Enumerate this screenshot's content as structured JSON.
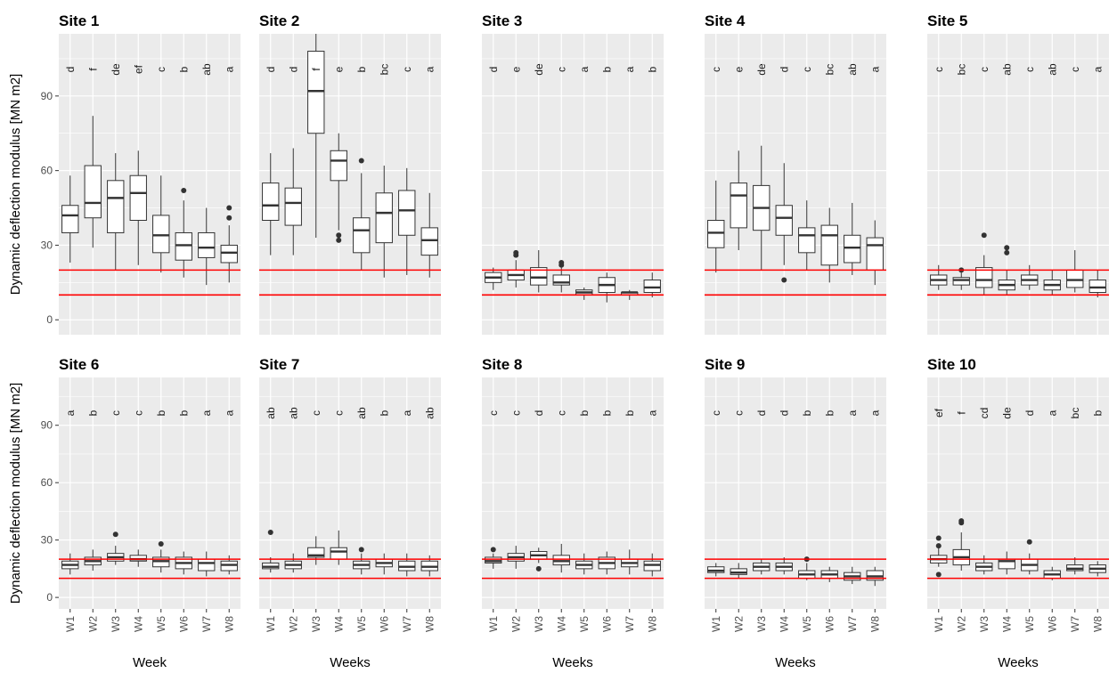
{
  "chart_data": {
    "type": "box",
    "ylabel": "Dynamic deflection modulus [MN m2]",
    "yticks": [
      0,
      30,
      60,
      90
    ],
    "ylim": [
      -6,
      115
    ],
    "categories": [
      "W1",
      "W2",
      "W3",
      "W4",
      "W5",
      "W6",
      "W7",
      "W8"
    ],
    "reference_lines": [
      10,
      20
    ],
    "colors": {
      "panel_bg": "#ebebeb",
      "grid": "#ffffff",
      "box_line": "#333333",
      "reference_line": "#ff0000",
      "outlier": "#333333"
    },
    "panels": [
      {
        "title": "Site 1",
        "xlabel": "Week",
        "letters": [
          "d",
          "f",
          "de",
          "ef",
          "c",
          "b",
          "ab",
          "a"
        ],
        "boxes": [
          {
            "min": 23,
            "q1": 35,
            "median": 42,
            "q3": 46,
            "max": 58,
            "outliers": []
          },
          {
            "min": 29,
            "q1": 41,
            "median": 47,
            "q3": 62,
            "max": 82,
            "outliers": []
          },
          {
            "min": 20,
            "q1": 35,
            "median": 49,
            "q3": 56,
            "max": 67,
            "outliers": []
          },
          {
            "min": 22,
            "q1": 40,
            "median": 51,
            "q3": 58,
            "max": 68,
            "outliers": []
          },
          {
            "min": 19,
            "q1": 27,
            "median": 34,
            "q3": 42,
            "max": 58,
            "outliers": []
          },
          {
            "min": 17,
            "q1": 24,
            "median": 30,
            "q3": 35,
            "max": 48,
            "outliers": [
              52
            ]
          },
          {
            "min": 14,
            "q1": 25,
            "median": 29,
            "q3": 35,
            "max": 45,
            "outliers": []
          },
          {
            "min": 15,
            "q1": 23,
            "median": 27,
            "q3": 30,
            "max": 38,
            "outliers": [
              41,
              45
            ]
          }
        ]
      },
      {
        "title": "Site 2",
        "xlabel": "Weeks",
        "letters": [
          "d",
          "d",
          "f",
          "e",
          "b",
          "bc",
          "c",
          "a"
        ],
        "boxes": [
          {
            "min": 26,
            "q1": 40,
            "median": 46,
            "q3": 55,
            "max": 67,
            "outliers": []
          },
          {
            "min": 26,
            "q1": 38,
            "median": 47,
            "q3": 53,
            "max": 69,
            "outliers": []
          },
          {
            "min": 33,
            "q1": 75,
            "median": 92,
            "q3": 108,
            "max": 115,
            "outliers": []
          },
          {
            "min": 36,
            "q1": 56,
            "median": 64,
            "q3": 68,
            "max": 75,
            "outliers": [
              32,
              34
            ]
          },
          {
            "min": 20,
            "q1": 27,
            "median": 36,
            "q3": 41,
            "max": 59,
            "outliers": [
              64
            ]
          },
          {
            "min": 17,
            "q1": 31,
            "median": 43,
            "q3": 51,
            "max": 62,
            "outliers": []
          },
          {
            "min": 18,
            "q1": 34,
            "median": 44,
            "q3": 52,
            "max": 61,
            "outliers": []
          },
          {
            "min": 17,
            "q1": 26,
            "median": 32,
            "q3": 37,
            "max": 51,
            "outliers": []
          }
        ]
      },
      {
        "title": "Site 3",
        "xlabel": "Weeks",
        "letters": [
          "d",
          "e",
          "de",
          "c",
          "a",
          "b",
          "a",
          "b"
        ],
        "boxes": [
          {
            "min": 12,
            "q1": 15,
            "median": 17,
            "q3": 19,
            "max": 21,
            "outliers": []
          },
          {
            "min": 13,
            "q1": 16,
            "median": 18,
            "q3": 20,
            "max": 24,
            "outliers": [
              26,
              27
            ]
          },
          {
            "min": 11,
            "q1": 14,
            "median": 17,
            "q3": 21,
            "max": 28,
            "outliers": []
          },
          {
            "min": 11,
            "q1": 14,
            "median": 15,
            "q3": 18,
            "max": 21,
            "outliers": [
              22,
              23
            ]
          },
          {
            "min": 8,
            "q1": 10,
            "median": 11,
            "q3": 12,
            "max": 13,
            "outliers": []
          },
          {
            "min": 7,
            "q1": 11,
            "median": 14,
            "q3": 17,
            "max": 19,
            "outliers": []
          },
          {
            "min": 8,
            "q1": 10,
            "median": 11,
            "q3": 11,
            "max": 12,
            "outliers": []
          },
          {
            "min": 9,
            "q1": 11,
            "median": 13,
            "q3": 16,
            "max": 19,
            "outliers": []
          }
        ]
      },
      {
        "title": "Site 4",
        "xlabel": "Weeks",
        "letters": [
          "c",
          "e",
          "de",
          "d",
          "c",
          "bc",
          "ab",
          "a"
        ],
        "boxes": [
          {
            "min": 19,
            "q1": 29,
            "median": 35,
            "q3": 40,
            "max": 56,
            "outliers": []
          },
          {
            "min": 28,
            "q1": 37,
            "median": 50,
            "q3": 55,
            "max": 68,
            "outliers": []
          },
          {
            "min": 20,
            "q1": 36,
            "median": 45,
            "q3": 54,
            "max": 70,
            "outliers": []
          },
          {
            "min": 22,
            "q1": 34,
            "median": 41,
            "q3": 46,
            "max": 63,
            "outliers": [
              16
            ]
          },
          {
            "min": 20,
            "q1": 27,
            "median": 34,
            "q3": 37,
            "max": 48,
            "outliers": []
          },
          {
            "min": 15,
            "q1": 22,
            "median": 34,
            "q3": 38,
            "max": 45,
            "outliers": []
          },
          {
            "min": 18,
            "q1": 23,
            "median": 29,
            "q3": 34,
            "max": 47,
            "outliers": []
          },
          {
            "min": 14,
            "q1": 20,
            "median": 30,
            "q3": 33,
            "max": 40,
            "outliers": []
          }
        ]
      },
      {
        "title": "Site 5",
        "xlabel": "Weeks",
        "letters": [
          "c",
          "bc",
          "c",
          "ab",
          "c",
          "ab",
          "c",
          "a"
        ],
        "boxes": [
          {
            "min": 12,
            "q1": 14,
            "median": 16,
            "q3": 18,
            "max": 22,
            "outliers": []
          },
          {
            "min": 12,
            "q1": 14,
            "median": 16,
            "q3": 17,
            "max": 19,
            "outliers": [
              20
            ]
          },
          {
            "min": 10,
            "q1": 13,
            "median": 16,
            "q3": 21,
            "max": 26,
            "outliers": [
              34
            ]
          },
          {
            "min": 10,
            "q1": 12,
            "median": 14,
            "q3": 16,
            "max": 20,
            "outliers": [
              27,
              29
            ]
          },
          {
            "min": 12,
            "q1": 14,
            "median": 16,
            "q3": 18,
            "max": 22,
            "outliers": []
          },
          {
            "min": 10,
            "q1": 12,
            "median": 14,
            "q3": 16,
            "max": 20,
            "outliers": []
          },
          {
            "min": 11,
            "q1": 13,
            "median": 16,
            "q3": 20,
            "max": 28,
            "outliers": []
          },
          {
            "min": 9,
            "q1": 11,
            "median": 13,
            "q3": 16,
            "max": 20,
            "outliers": []
          }
        ]
      },
      {
        "title": "Site 6",
        "xlabel": "Week",
        "letters": [
          "a",
          "b",
          "c",
          "c",
          "b",
          "b",
          "a",
          "a"
        ],
        "boxes": [
          {
            "min": 12,
            "q1": 15,
            "median": 17,
            "q3": 19,
            "max": 23,
            "outliers": []
          },
          {
            "min": 14,
            "q1": 17,
            "median": 19,
            "q3": 21,
            "max": 25,
            "outliers": []
          },
          {
            "min": 17,
            "q1": 19,
            "median": 21,
            "q3": 23,
            "max": 27,
            "outliers": [
              33
            ]
          },
          {
            "min": 16,
            "q1": 19,
            "median": 20,
            "q3": 22,
            "max": 25,
            "outliers": []
          },
          {
            "min": 13,
            "q1": 16,
            "median": 19,
            "q3": 21,
            "max": 25,
            "outliers": [
              28
            ]
          },
          {
            "min": 12,
            "q1": 15,
            "median": 18,
            "q3": 21,
            "max": 24,
            "outliers": []
          },
          {
            "min": 11,
            "q1": 14,
            "median": 18,
            "q3": 20,
            "max": 24,
            "outliers": []
          },
          {
            "min": 12,
            "q1": 14,
            "median": 17,
            "q3": 19,
            "max": 22,
            "outliers": []
          }
        ]
      },
      {
        "title": "Site 7",
        "xlabel": "Weeks",
        "letters": [
          "ab",
          "ab",
          "c",
          "c",
          "ab",
          "b",
          "a",
          "ab"
        ],
        "boxes": [
          {
            "min": 13,
            "q1": 15,
            "median": 16,
            "q3": 18,
            "max": 21,
            "outliers": [
              34
            ]
          },
          {
            "min": 13,
            "q1": 15,
            "median": 17,
            "q3": 19,
            "max": 23,
            "outliers": []
          },
          {
            "min": 17,
            "q1": 21,
            "median": 22,
            "q3": 26,
            "max": 32,
            "outliers": []
          },
          {
            "min": 17,
            "q1": 20,
            "median": 24,
            "q3": 26,
            "max": 35,
            "outliers": []
          },
          {
            "min": 12,
            "q1": 15,
            "median": 17,
            "q3": 19,
            "max": 23,
            "outliers": [
              25
            ]
          },
          {
            "min": 12,
            "q1": 16,
            "median": 18,
            "q3": 20,
            "max": 23,
            "outliers": []
          },
          {
            "min": 11,
            "q1": 14,
            "median": 16,
            "q3": 19,
            "max": 23,
            "outliers": []
          },
          {
            "min": 11,
            "q1": 14,
            "median": 16,
            "q3": 19,
            "max": 22,
            "outliers": []
          }
        ]
      },
      {
        "title": "Site 8",
        "xlabel": "Weeks",
        "letters": [
          "c",
          "c",
          "d",
          "c",
          "b",
          "b",
          "b",
          "a"
        ],
        "boxes": [
          {
            "min": 15,
            "q1": 18,
            "median": 19,
            "q3": 21,
            "max": 23,
            "outliers": [
              25
            ]
          },
          {
            "min": 15,
            "q1": 19,
            "median": 21,
            "q3": 23,
            "max": 27,
            "outliers": []
          },
          {
            "min": 18,
            "q1": 20,
            "median": 22,
            "q3": 24,
            "max": 26,
            "outliers": [
              15
            ]
          },
          {
            "min": 13,
            "q1": 17,
            "median": 19,
            "q3": 22,
            "max": 28,
            "outliers": []
          },
          {
            "min": 12,
            "q1": 15,
            "median": 17,
            "q3": 19,
            "max": 23,
            "outliers": []
          },
          {
            "min": 12,
            "q1": 15,
            "median": 18,
            "q3": 21,
            "max": 24,
            "outliers": []
          },
          {
            "min": 12,
            "q1": 16,
            "median": 18,
            "q3": 20,
            "max": 25,
            "outliers": []
          },
          {
            "min": 11,
            "q1": 14,
            "median": 17,
            "q3": 19,
            "max": 23,
            "outliers": []
          }
        ]
      },
      {
        "title": "Site 9",
        "xlabel": "Weeks",
        "letters": [
          "c",
          "c",
          "d",
          "d",
          "b",
          "b",
          "a",
          "a"
        ],
        "boxes": [
          {
            "min": 11,
            "q1": 13,
            "median": 14,
            "q3": 16,
            "max": 18,
            "outliers": []
          },
          {
            "min": 10,
            "q1": 12,
            "median": 13,
            "q3": 15,
            "max": 18,
            "outliers": []
          },
          {
            "min": 12,
            "q1": 14,
            "median": 16,
            "q3": 18,
            "max": 20,
            "outliers": []
          },
          {
            "min": 12,
            "q1": 14,
            "median": 16,
            "q3": 18,
            "max": 21,
            "outliers": []
          },
          {
            "min": 9,
            "q1": 10,
            "median": 12,
            "q3": 14,
            "max": 18,
            "outliers": [
              20
            ]
          },
          {
            "min": 8,
            "q1": 10,
            "median": 12,
            "q3": 14,
            "max": 16,
            "outliers": []
          },
          {
            "min": 7,
            "q1": 9,
            "median": 11,
            "q3": 13,
            "max": 16,
            "outliers": []
          },
          {
            "min": 6,
            "q1": 9,
            "median": 11,
            "q3": 14,
            "max": 16,
            "outliers": []
          }
        ]
      },
      {
        "title": "Site 10",
        "xlabel": "Weeks",
        "letters": [
          "ef",
          "f",
          "cd",
          "de",
          "d",
          "a",
          "bc",
          "b"
        ],
        "boxes": [
          {
            "min": 16,
            "q1": 18,
            "median": 20,
            "q3": 22,
            "max": 26,
            "outliers": [
              12,
              27,
              31
            ]
          },
          {
            "min": 14,
            "q1": 17,
            "median": 21,
            "q3": 25,
            "max": 34,
            "outliers": [
              39,
              40
            ]
          },
          {
            "min": 12,
            "q1": 14,
            "median": 16,
            "q3": 18,
            "max": 22,
            "outliers": []
          },
          {
            "min": 12,
            "q1": 15,
            "median": 19,
            "q3": 20,
            "max": 24,
            "outliers": []
          },
          {
            "min": 12,
            "q1": 14,
            "median": 17,
            "q3": 20,
            "max": 23,
            "outliers": [
              29
            ]
          },
          {
            "min": 9,
            "q1": 10,
            "median": 12,
            "q3": 14,
            "max": 16,
            "outliers": []
          },
          {
            "min": 12,
            "q1": 14,
            "median": 15,
            "q3": 17,
            "max": 21,
            "outliers": []
          },
          {
            "min": 11,
            "q1": 13,
            "median": 15,
            "q3": 17,
            "max": 19,
            "outliers": []
          }
        ]
      }
    ]
  }
}
